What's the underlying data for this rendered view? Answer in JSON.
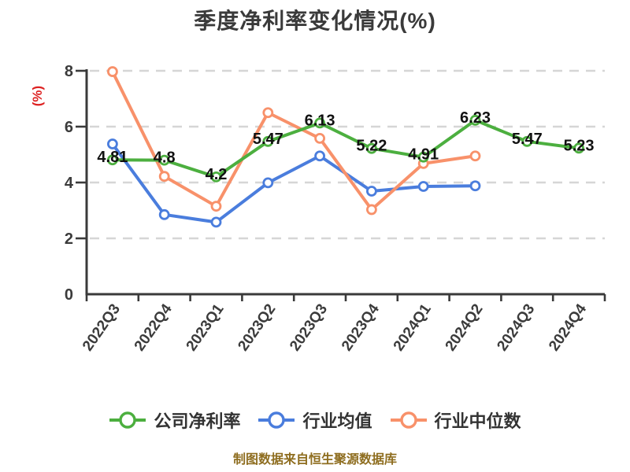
{
  "chart_data": {
    "type": "line",
    "title": "季度净利率变化情况(%)",
    "ylabel": "(%)",
    "xlabel": "",
    "source_note": "制图数据来自恒生聚源数据库",
    "categories": [
      "2022Q3",
      "2022Q4",
      "2023Q1",
      "2023Q2",
      "2023Q3",
      "2023Q4",
      "2024Q1",
      "2024Q2",
      "2024Q3",
      "2024Q4"
    ],
    "ylim": [
      0,
      8
    ],
    "yticks": [
      0,
      2,
      4,
      6,
      8
    ],
    "grid": "dashed-horizontal",
    "legend_position": "bottom",
    "series": [
      {
        "id": "company-net-margin",
        "name": "公司净利率",
        "color": "#4caf3f",
        "values": [
          4.81,
          4.8,
          4.2,
          5.47,
          6.13,
          5.22,
          4.91,
          6.23,
          5.47,
          5.23
        ],
        "labels": [
          "4.81",
          "4.8",
          "4.2",
          "5.47",
          "6.13",
          "5.22",
          "4.91",
          "6.23",
          "5.47",
          "5.23"
        ],
        "show_labels": true
      },
      {
        "id": "industry-mean",
        "name": "行业均值",
        "color": "#4a7ddd",
        "values": [
          5.38,
          2.85,
          2.58,
          3.99,
          4.95,
          3.69,
          3.86,
          3.88,
          null,
          null
        ],
        "labels": null,
        "show_labels": false
      },
      {
        "id": "industry-median",
        "name": "行业中位数",
        "color": "#f8916a",
        "values": [
          7.97,
          4.22,
          3.15,
          6.5,
          5.58,
          3.03,
          4.68,
          4.95,
          null,
          null
        ],
        "labels": null,
        "show_labels": false
      }
    ],
    "colors": {
      "title": "#3a3a3a",
      "axis": "#3a3a3a",
      "tick_label": "#3b3b3b",
      "grid": "#d6d6d6",
      "data_label": "#111111",
      "ylabel": "#dd2222",
      "source_note": "#8e6d1f",
      "legend_label": "#333333",
      "background": "#ffffff"
    }
  }
}
